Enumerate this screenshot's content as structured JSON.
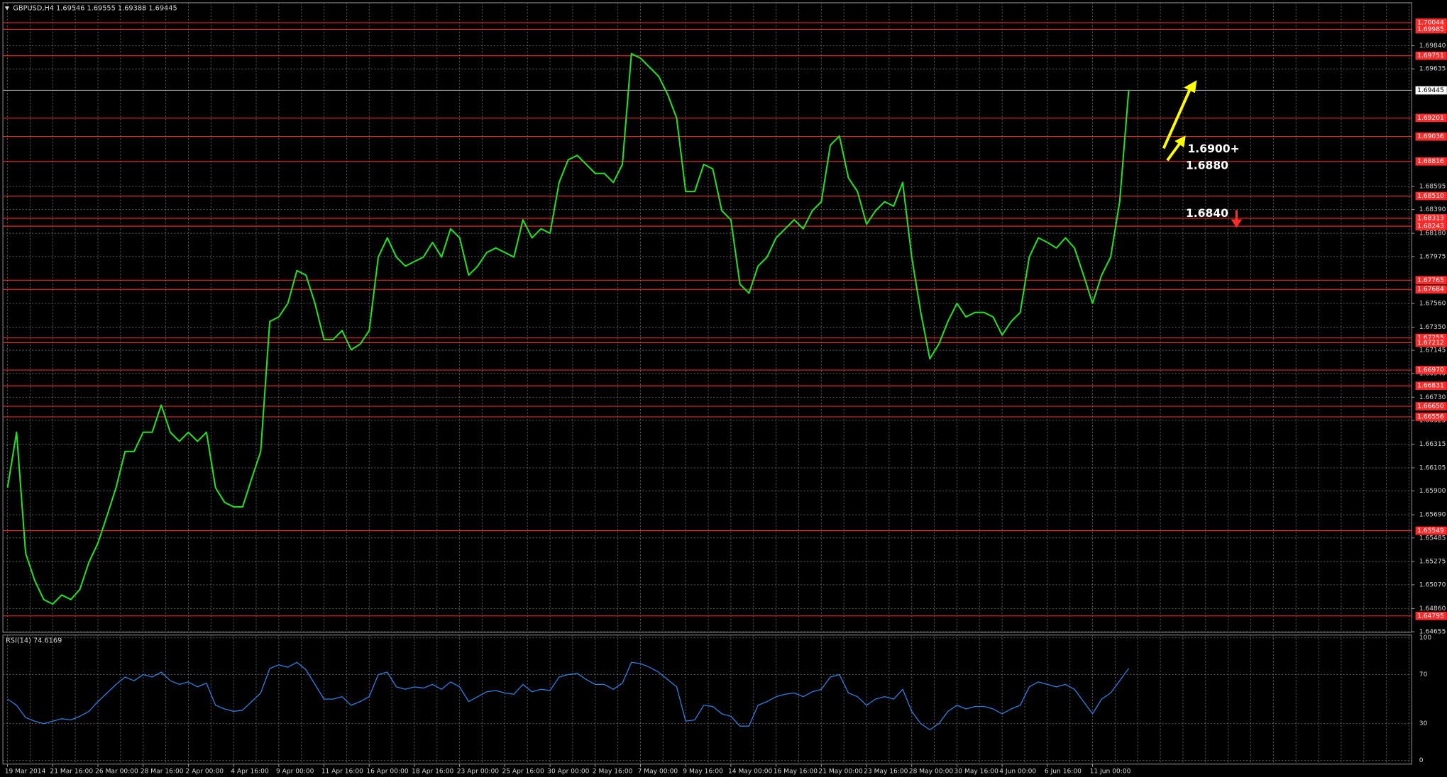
{
  "chart_data": {
    "type": "line",
    "title": "GBPUSD,H4  1.69546 1.69555 1.69388 1.69445",
    "color": "#22dd22",
    "ylim": [
      1.6465,
      1.7022
    ],
    "yticks": [
      {
        "value": 1.6984,
        "label": "1.69840"
      },
      1.69635,
      {
        "value": 1.68595,
        "label": "1.68595"
      },
      {
        "value": 1.6839,
        "label": "1.68390"
      },
      {
        "value": 1.6818,
        "label": "1.68180"
      },
      1.67975,
      {
        "value": 1.6756,
        "label": "1.67560"
      },
      {
        "value": 1.6735,
        "label": "1.67350"
      },
      1.67145,
      {
        "value": 1.6694,
        "label": "1.66940"
      },
      {
        "value": 1.6673,
        "label": "1.66730"
      },
      1.66525,
      1.66315,
      1.66105,
      {
        "value": 1.659,
        "label": "1.65900"
      },
      {
        "value": 1.6569,
        "label": "1.65690"
      },
      1.65485,
      1.65275,
      {
        "value": 1.6507,
        "label": "1.65070"
      },
      {
        "value": 1.6486,
        "label": "1.64860"
      },
      1.64655
    ],
    "grid": true,
    "levels": [
      1.70044,
      1.69985,
      1.69751,
      1.69201,
      1.69036,
      1.68816,
      {
        "value": 1.6851,
        "label": "1.68510"
      },
      1.68313,
      1.68243,
      1.67765,
      1.67684,
      1.67255,
      1.67212,
      {
        "value": 1.6697,
        "label": "1.66970"
      },
      1.66831,
      {
        "value": 1.6665,
        "label": "1.66650"
      },
      1.66556,
      1.65549,
      1.64795
    ],
    "level_color": "#ff2a2a",
    "current_price": 1.69445,
    "annotations": [
      "1.6900+",
      "1.6880",
      "1.6840"
    ],
    "x_labels": [
      "19 Mar 2014",
      "21 Mar 16:00",
      "26 Mar 00:00",
      "28 Mar 16:00",
      "2 Apr 00:00",
      "4 Apr 16:00",
      "9 Apr 00:00",
      "11 Apr 16:00",
      "16 Apr 00:00",
      "18 Apr 16:00",
      "23 Apr 00:00",
      "25 Apr 16:00",
      "30 Apr 00:00",
      "2 May 16:00",
      "7 May 00:00",
      "9 May 16:00",
      "14 May 00:00",
      "16 May 16:00",
      "21 May 00:00",
      "23 May 16:00",
      "28 May 00:00",
      "30 May 16:00",
      "4 Jun 00:00",
      "6 Jun 16:00",
      "11 Jun 00:00"
    ],
    "values": [
      1.6593,
      1.6642,
      1.6535,
      1.6511,
      1.6494,
      1.649,
      1.6498,
      1.6494,
      1.6503,
      1.6527,
      1.6544,
      1.6568,
      1.6593,
      1.6625,
      1.6625,
      1.6642,
      1.6642,
      1.6666,
      1.6642,
      1.6634,
      1.6642,
      1.6634,
      1.6642,
      1.6593,
      1.658,
      1.6576,
      1.6576,
      1.6601,
      1.6625,
      1.674,
      1.6744,
      1.6756,
      1.6785,
      1.6781,
      1.6756,
      1.6724,
      1.6724,
      1.6732,
      1.6715,
      1.672,
      1.6732,
      1.6797,
      1.6814,
      1.6797,
      1.6789,
      1.6793,
      1.6797,
      1.681,
      1.6797,
      1.6822,
      1.6814,
      1.6781,
      1.6789,
      1.6801,
      1.6805,
      1.6801,
      1.6797,
      1.683,
      1.6814,
      1.6822,
      1.6818,
      1.6863,
      1.6883,
      1.6887,
      1.6879,
      1.6871,
      1.6871,
      1.6863,
      1.6879,
      1.6977,
      1.6973,
      1.6965,
      1.6957,
      1.6941,
      1.692,
      1.6855,
      1.6855,
      1.6879,
      1.6875,
      1.6838,
      1.683,
      1.6773,
      1.6765,
      1.6789,
      1.6797,
      1.6814,
      1.6822,
      1.683,
      1.6822,
      1.6838,
      1.6846,
      1.6896,
      1.6904,
      1.6867,
      1.6855,
      1.6826,
      1.6838,
      1.6846,
      1.6842,
      1.6863,
      1.6797,
      1.6748,
      1.6707,
      1.672,
      1.674,
      1.6756,
      1.6744,
      1.6748,
      1.6748,
      1.6744,
      1.6728,
      1.674,
      1.6748,
      1.6797,
      1.6814,
      1.681,
      1.6805,
      1.6814,
      1.6805,
      1.6781,
      1.6756,
      1.6781,
      1.6797,
      1.6846,
      1.6945
    ],
    "rsi": {
      "label": "RSI(14) 74.6169",
      "color": "#2f7fe0",
      "ylim": [
        0,
        100
      ],
      "yticks": [
        0,
        30,
        70,
        100
      ],
      "values": [
        50,
        45,
        35,
        32,
        30,
        32,
        34,
        33,
        36,
        40,
        48,
        55,
        62,
        68,
        65,
        70,
        68,
        72,
        65,
        62,
        64,
        60,
        63,
        45,
        42,
        40,
        41,
        48,
        55,
        75,
        78,
        76,
        80,
        74,
        62,
        50,
        50,
        52,
        45,
        48,
        52,
        70,
        72,
        60,
        58,
        60,
        59,
        62,
        58,
        64,
        60,
        48,
        52,
        56,
        57,
        55,
        54,
        62,
        56,
        58,
        57,
        68,
        70,
        71,
        66,
        62,
        62,
        58,
        63,
        80,
        79,
        76,
        72,
        66,
        60,
        32,
        33,
        45,
        44,
        38,
        36,
        28,
        28,
        45,
        48,
        52,
        54,
        55,
        52,
        56,
        58,
        68,
        70,
        55,
        52,
        45,
        50,
        52,
        50,
        58,
        40,
        30,
        25,
        30,
        40,
        45,
        42,
        44,
        44,
        42,
        38,
        42,
        45,
        60,
        64,
        62,
        60,
        62,
        58,
        48,
        38,
        50,
        55,
        65,
        75
      ]
    }
  }
}
